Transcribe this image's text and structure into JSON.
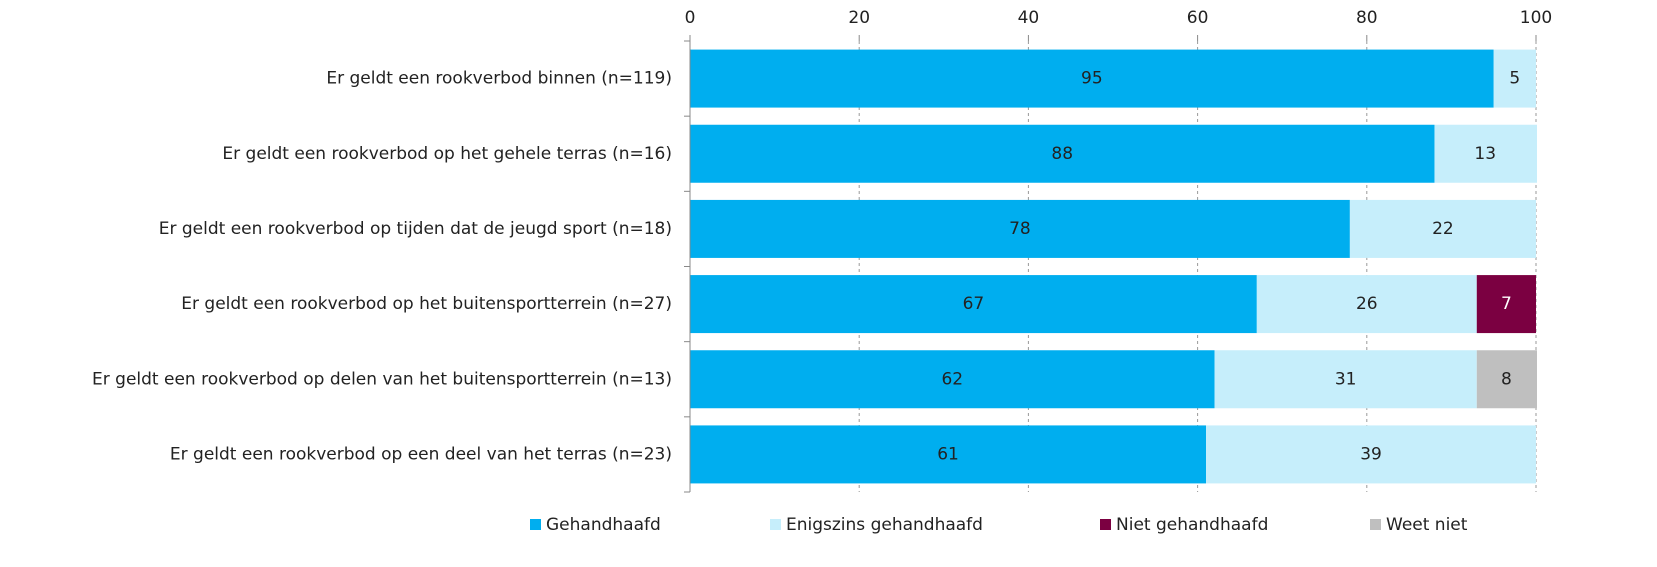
{
  "chart_data": {
    "type": "stacked-bar-horizontal",
    "categories": [
      "Er geldt een rookverbod binnen (n=119)",
      "Er geldt een rookverbod op het gehele terras (n=16)",
      "Er geldt een rookverbod op tijden dat de jeugd sport (n=18)",
      "Er geldt een rookverbod op het buitensportterrein (n=27)",
      "Er geldt een rookverbod op delen van het buitensportterrein (n=13)",
      "Er geldt een rookverbod op een deel van het terras (n=23)"
    ],
    "series": [
      {
        "name": "Gehandhaafd",
        "color": "#00aeef",
        "values": [
          95,
          88,
          78,
          67,
          62,
          61
        ]
      },
      {
        "name": "Enigszins gehandhaafd",
        "color": "#c6eefb",
        "values": [
          5,
          13,
          22,
          26,
          31,
          39
        ]
      },
      {
        "name": "Niet gehandhaafd",
        "color": "#7b0041",
        "values": [
          null,
          null,
          null,
          7,
          null,
          null
        ]
      },
      {
        "name": "Weet niet",
        "color": "#bfbfbf",
        "values": [
          null,
          null,
          null,
          null,
          8,
          null
        ]
      }
    ],
    "xlim": [
      0,
      100
    ],
    "xticks": [
      0,
      20,
      40,
      60,
      80,
      100
    ],
    "grid": true,
    "legend": "bottom"
  }
}
